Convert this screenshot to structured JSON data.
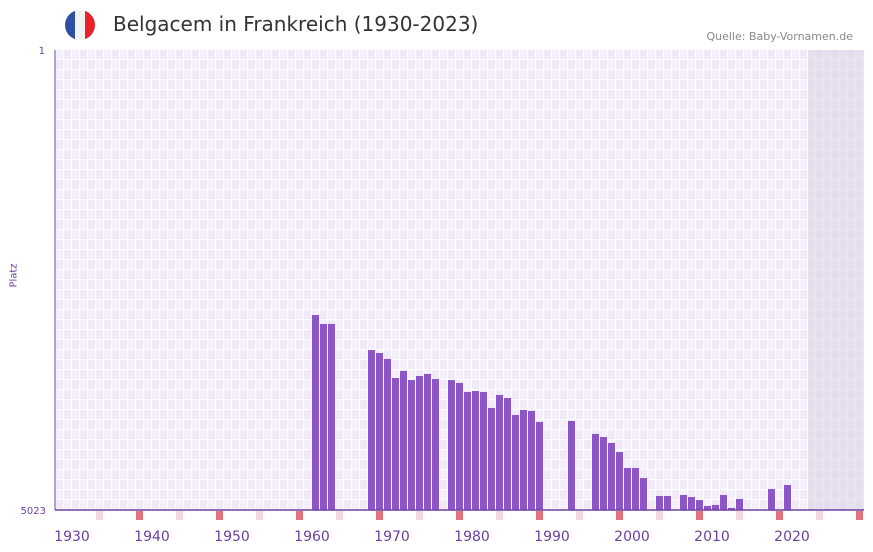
{
  "header": {
    "title": "Belgacem in Frankreich (1930-2023)",
    "source": "Quelle: Baby-Vornamen.de",
    "flag_colors": [
      "#2f4fa2",
      "#f2f2f2",
      "#e8212b"
    ]
  },
  "chart_data": {
    "type": "bar",
    "title": "Belgacem in Frankreich (1930-2023)",
    "xlabel": "",
    "ylabel": "Platz",
    "ylim": [
      5023,
      1
    ],
    "xlim": [
      1928,
      2028
    ],
    "y_ticks": [
      "1",
      "5023"
    ],
    "x_ticks": [
      1930,
      1940,
      1950,
      1960,
      1970,
      1980,
      1990,
      2000,
      2010,
      2020
    ],
    "shaded_range": [
      2022,
      2028
    ],
    "grid": true,
    "colors": {
      "bar": "#8e55c8",
      "axis": "#6b3fa0",
      "marker_major": "#e5737d",
      "marker_minor": "#f5d7df",
      "shade": "#dcd6e6"
    },
    "marker_major_years": [
      1938,
      1948,
      1958,
      1968,
      1978,
      1988,
      1998,
      2008,
      2018,
      2028
    ],
    "marker_minor_years": [
      1933,
      1943,
      1953,
      1963,
      1973,
      1983,
      1993,
      2003,
      2013,
      2023
    ],
    "x": [
      1960,
      1961,
      1962,
      1967,
      1968,
      1969,
      1970,
      1971,
      1972,
      1973,
      1974,
      1975,
      1977,
      1978,
      1979,
      1980,
      1981,
      1982,
      1983,
      1984,
      1985,
      1986,
      1987,
      1988,
      1992,
      1995,
      1996,
      1997,
      1998,
      1999,
      2000,
      2001,
      2003,
      2004,
      2006,
      2007,
      2008,
      2009,
      2010,
      2011,
      2012,
      2013,
      2017,
      2019
    ],
    "values": [
      2894,
      2992,
      2992,
      3276,
      3309,
      3374,
      3582,
      3505,
      3604,
      3560,
      3538,
      3593,
      3604,
      3636,
      3735,
      3724,
      3735,
      3909,
      3767,
      3800,
      3986,
      3931,
      3942,
      4062,
      4051,
      4193,
      4226,
      4291,
      4390,
      4564,
      4564,
      4674,
      4870,
      4870,
      4859,
      4881,
      4914,
      4979,
      4968,
      4859,
      5001,
      4903,
      4794,
      4750
    ]
  }
}
